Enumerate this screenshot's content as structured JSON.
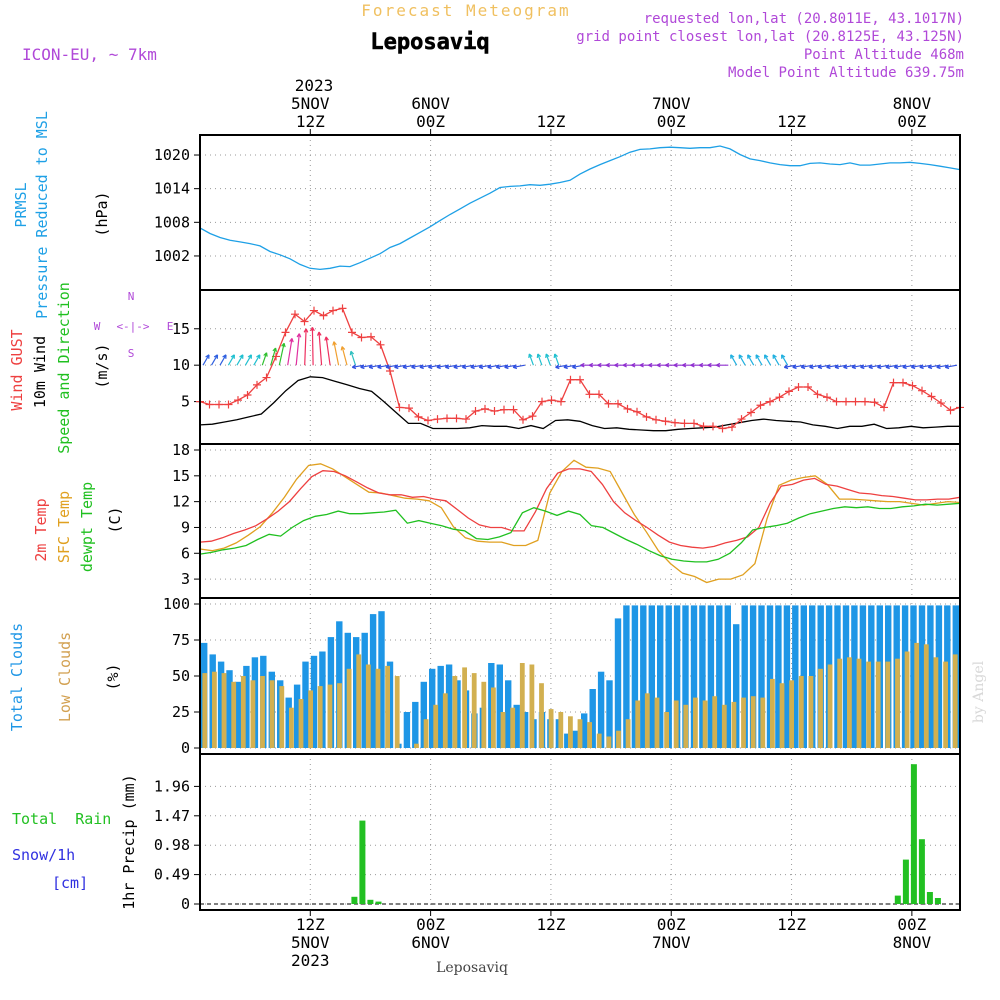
{
  "header": {
    "forecast_title": "Forecast Meteogram",
    "location": "Leposaviq",
    "model": "ICON-EU, ~ 7km",
    "requested": "requested lon,lat (20.8011E, 43.1017N)",
    "grid_point": "grid point closest lon,lat (20.8125E, 43.125N)",
    "point_altitude": "Point Altitude 468m",
    "model_altitude": "Model Point Altitude 639.75m",
    "footer_location": "Leposaviq",
    "watermark": "by Angel"
  },
  "colors": {
    "pressure": "#1ea0e6",
    "gust": "#ee4040",
    "wind10m": "#000000",
    "t2m": "#ee4040",
    "tsfc": "#e0a020",
    "dewpt": "#20c020",
    "total_cloud": "#1e96e6",
    "low_cloud": "#d2b050",
    "rain": "#22c022",
    "snow": "#3030e0",
    "label_purple": "#b048d8",
    "title_orange": "#f0c060"
  },
  "chart_data": [
    {
      "type": "line",
      "name": "pressure",
      "title_top": "2023",
      "axis_top_labels": [
        {
          "hour": 12,
          "lines": [
            "5NOV",
            "12Z"
          ]
        },
        {
          "hour": 24,
          "lines": [
            "6NOV",
            "00Z"
          ]
        },
        {
          "hour": 36,
          "lines": [
            "",
            "12Z"
          ]
        },
        {
          "hour": 48,
          "lines": [
            "7NOV",
            "00Z"
          ]
        },
        {
          "hour": 60,
          "lines": [
            "",
            "12Z"
          ]
        },
        {
          "hour": 72,
          "lines": [
            "8NOV",
            "00Z"
          ]
        }
      ],
      "ylabel_1": "PRMSL",
      "ylabel_2": "Pressure Reduced to MSL",
      "ylabel_units": "(hPa)",
      "y_ticks": [
        "1002",
        "1008",
        "1014",
        "1020"
      ],
      "ylim": [
        997,
        1022.5
      ],
      "x_unit": "hours since 5NOV 01Z",
      "xlim": [
        1,
        76.8
      ],
      "x": [
        1,
        2,
        3,
        4,
        5,
        6,
        7,
        8,
        9,
        10,
        11,
        12,
        13,
        14,
        15,
        16,
        17,
        18,
        19,
        20,
        21,
        22,
        23,
        24,
        25,
        26,
        27,
        28,
        29,
        30,
        31,
        32,
        33,
        34,
        35,
        36,
        37,
        38,
        39,
        40,
        41,
        42,
        43,
        44,
        45,
        46,
        47,
        48,
        49,
        50,
        51,
        52,
        53,
        54,
        55,
        56,
        57,
        58,
        59,
        60,
        61,
        62,
        63,
        64,
        65,
        66,
        67,
        68,
        69,
        70,
        71,
        72,
        73,
        74,
        75,
        76,
        77
      ],
      "values": [
        1007.0,
        1006.0,
        1005.3,
        1004.8,
        1004.5,
        1004.2,
        1003.8,
        1002.8,
        1002.2,
        1001.5,
        1000.5,
        999.8,
        999.6,
        999.8,
        1000.2,
        1000.1,
        1000.8,
        1001.6,
        1002.4,
        1003.5,
        1004.2,
        1005.2,
        1006.2,
        1007.2,
        1008.3,
        1009.4,
        1010.4,
        1011.4,
        1012.3,
        1013.2,
        1014.2,
        1014.4,
        1014.5,
        1014.7,
        1014.6,
        1014.8,
        1015.1,
        1015.5,
        1016.6,
        1017.5,
        1018.3,
        1019.0,
        1019.7,
        1020.5,
        1021.0,
        1021.1,
        1021.3,
        1021.4,
        1021.3,
        1021.2,
        1021.3,
        1021.3,
        1021.6,
        1021.1,
        1020.1,
        1019.3,
        1019.0,
        1018.6,
        1018.3,
        1018.1,
        1018.1,
        1018.5,
        1018.6,
        1018.4,
        1018.3,
        1018.6,
        1018.2,
        1018.2,
        1018.4,
        1018.6,
        1018.6,
        1018.7,
        1018.5,
        1018.3,
        1018.0,
        1017.7,
        1017.4
      ]
    },
    {
      "type": "line",
      "name": "wind",
      "ylabel_1": "Wind GUST",
      "ylabel_2": "10m Wind",
      "ylabel_3": "Speed and Direction",
      "ylabel_units": "(m/s)",
      "compass": {
        "n": "N",
        "s": "S",
        "w": "W",
        "e": "E",
        "arrows": "<-|->"
      },
      "y_ticks": [
        "5",
        "10",
        "15"
      ],
      "ylim": [
        0,
        19.5
      ],
      "series": [
        {
          "name": "Wind GUST",
          "values": [
            5.0,
            4.6,
            4.6,
            4.6,
            5.2,
            5.9,
            7.3,
            8.3,
            11.2,
            14.5,
            17.0,
            16.0,
            17.5,
            16.8,
            17.5,
            17.8,
            14.5,
            13.8,
            13.9,
            12.8,
            9.2,
            4.2,
            4.1,
            2.9,
            2.4,
            2.6,
            2.7,
            2.7,
            2.6,
            3.7,
            4.0,
            3.7,
            3.9,
            3.9,
            2.5,
            3.0,
            5.0,
            5.2,
            5.0,
            8.0,
            8.0,
            6.0,
            6.0,
            4.7,
            4.7,
            4.0,
            3.6,
            2.9,
            2.5,
            2.3,
            2.1,
            2.0,
            2.0,
            1.6,
            1.6,
            1.3,
            1.5,
            2.6,
            3.5,
            4.5,
            5.0,
            5.6,
            6.4,
            7.0,
            7.0,
            6.0,
            5.6,
            5.0,
            5.0,
            5.0,
            5.0,
            4.9,
            4.2,
            7.6,
            7.6,
            7.2,
            6.5,
            5.7,
            4.8,
            3.8,
            4.2
          ]
        },
        {
          "name": "10m Wind",
          "values": [
            1.8,
            1.9,
            2.2,
            2.5,
            2.9,
            3.3,
            4.8,
            6.5,
            7.9,
            8.4,
            8.3,
            7.8,
            7.3,
            6.8,
            6.4,
            5.0,
            3.5,
            2.0,
            2.0,
            1.3,
            1.3,
            1.3,
            1.4,
            1.7,
            1.6,
            1.6,
            1.3,
            1.7,
            1.3,
            2.4,
            2.5,
            2.3,
            1.7,
            1.3,
            1.4,
            1.2,
            1.1,
            1.0,
            1.0,
            1.2,
            1.3,
            1.4,
            1.5,
            1.8,
            2.1,
            2.4,
            2.6,
            2.4,
            2.3,
            2.2,
            1.8,
            1.6,
            1.3,
            1.6,
            1.6,
            1.9,
            1.3,
            1.4,
            1.6,
            1.4,
            1.5,
            1.6,
            1.6
          ]
        }
      ]
    },
    {
      "type": "line",
      "name": "temperature",
      "ylabel_1": "2m Temp",
      "ylabel_2": "SFC Temp",
      "ylabel_3": "dewpt Temp",
      "ylabel_units": "(C)",
      "y_ticks": [
        "3",
        "6",
        "9",
        "12",
        "15",
        "18"
      ],
      "ylim": [
        1.5,
        18
      ],
      "series": [
        {
          "name": "2m Temp",
          "values": [
            7.3,
            7.4,
            7.8,
            8.3,
            8.7,
            9.2,
            10.0,
            10.9,
            12.0,
            13.5,
            14.9,
            15.6,
            15.5,
            15.0,
            14.3,
            13.6,
            13.0,
            12.8,
            12.8,
            12.5,
            12.6,
            12.3,
            12.1,
            11.1,
            10.1,
            9.3,
            9.0,
            9.0,
            8.6,
            8.6,
            10.8,
            13.5,
            15.3,
            15.8,
            15.8,
            15.5,
            14.0,
            12.0,
            10.7,
            9.8,
            9.0,
            8.1,
            7.3,
            6.9,
            6.7,
            6.6,
            6.8,
            7.2,
            7.5,
            7.9,
            9.0,
            11.8,
            13.8,
            14.0,
            14.5,
            14.7,
            14.0,
            13.8,
            13.4,
            13.0,
            12.9,
            12.7,
            12.6,
            12.4,
            12.2,
            12.2,
            12.3,
            12.3,
            12.5
          ]
        },
        {
          "name": "SFC Temp",
          "values": [
            6.5,
            6.3,
            6.6,
            7.2,
            8.1,
            9.1,
            10.7,
            12.5,
            14.6,
            16.2,
            16.4,
            15.8,
            14.9,
            14.0,
            13.1,
            13.0,
            12.7,
            12.4,
            12.3,
            12.1,
            11.3,
            9.1,
            7.8,
            7.4,
            7.3,
            7.3,
            6.9,
            6.9,
            7.5,
            13.0,
            15.5,
            16.8,
            16.0,
            15.9,
            15.5,
            13.0,
            10.5,
            8.5,
            6.3,
            4.8,
            3.7,
            3.3,
            2.6,
            3.0,
            3.0,
            3.5,
            4.8,
            10.0,
            13.9,
            14.5,
            14.8,
            15.0,
            14.0,
            12.3,
            12.3,
            12.2,
            12.1,
            12.0,
            12.0,
            11.8,
            11.6,
            11.8,
            12.0,
            11.9
          ]
        },
        {
          "name": "dewpt Temp",
          "values": [
            5.9,
            6.1,
            6.4,
            6.6,
            6.9,
            7.6,
            8.2,
            8.0,
            9.0,
            9.8,
            10.3,
            10.5,
            10.9,
            10.6,
            10.6,
            10.7,
            10.8,
            11.0,
            9.5,
            9.8,
            9.5,
            9.2,
            8.8,
            8.6,
            7.7,
            7.6,
            7.9,
            8.4,
            10.7,
            11.3,
            10.9,
            10.4,
            10.9,
            10.5,
            9.2,
            9.0,
            8.3,
            7.6,
            7.0,
            6.3,
            5.7,
            5.3,
            5.1,
            5.0,
            5.0,
            5.3,
            6.0,
            7.2,
            8.7,
            9.0,
            9.2,
            9.5,
            10.1,
            10.6,
            10.9,
            11.2,
            11.4,
            11.3,
            11.4,
            11.2,
            11.2,
            11.4,
            11.5,
            11.7,
            11.6,
            11.7,
            11.8
          ]
        }
      ]
    },
    {
      "type": "bar",
      "name": "clouds",
      "ylabel_1": "Total Clouds",
      "ylabel_2": "Low Clouds",
      "ylabel_units": "(%)",
      "y_ticks": [
        "0",
        "25",
        "50",
        "75",
        "100"
      ],
      "ylim": [
        0,
        100
      ],
      "series": [
        {
          "name": "Total Clouds",
          "values": [
            73,
            65,
            60,
            54,
            46,
            57,
            63,
            64,
            53,
            47,
            35,
            44,
            60,
            64,
            67,
            77,
            88,
            80,
            77,
            80,
            93,
            95,
            60,
            3,
            25,
            32,
            46,
            55,
            57,
            58,
            47,
            40,
            24,
            28,
            59,
            58,
            47,
            30,
            25,
            20,
            25,
            20,
            20,
            10,
            12,
            24,
            41,
            53,
            47,
            90,
            99,
            99,
            99,
            99,
            99,
            99,
            99,
            99,
            99,
            99,
            99,
            99,
            99,
            86,
            99,
            99,
            99,
            99,
            99,
            99,
            99,
            99,
            99,
            99,
            99,
            99,
            99,
            99,
            99,
            99,
            99,
            99,
            99,
            99,
            99,
            99,
            99,
            99,
            99,
            99
          ]
        },
        {
          "name": "Low Clouds",
          "values": [
            52,
            53,
            52,
            46,
            50,
            47,
            50,
            47,
            43,
            28,
            34,
            40,
            43,
            44,
            45,
            55,
            65,
            58,
            55,
            57,
            50,
            0,
            3,
            20,
            30,
            38,
            50,
            56,
            52,
            46,
            42,
            25,
            28,
            59,
            58,
            45,
            27,
            25,
            22,
            20,
            18,
            10,
            8,
            12,
            20,
            33,
            38,
            35,
            25,
            33,
            30,
            35,
            33,
            36,
            30,
            32,
            35,
            36,
            35,
            48,
            45,
            47,
            50,
            50,
            55,
            58,
            62,
            63,
            62,
            60,
            60,
            60,
            62,
            67,
            73,
            72,
            63,
            60,
            65
          ]
        }
      ]
    },
    {
      "type": "bar",
      "name": "precip",
      "ylabel_1": "Total  Rain",
      "ylabel_2": "Snow/1h",
      "ylabel_3": "[cm]",
      "ylabel_units": "1hr Precip (mm)",
      "y_ticks": [
        "0",
        "0.49",
        "0.98",
        "1.47",
        "1.96"
      ],
      "ylim": [
        0,
        2.4
      ],
      "axis_bottom_labels": [
        {
          "hour": 12,
          "lines": [
            "12Z",
            "5NOV",
            "2023"
          ]
        },
        {
          "hour": 24,
          "lines": [
            "00Z",
            "6NOV",
            ""
          ]
        },
        {
          "hour": 36,
          "lines": [
            "12Z",
            "",
            ""
          ]
        },
        {
          "hour": 48,
          "lines": [
            "00Z",
            "7NOV",
            ""
          ]
        },
        {
          "hour": 60,
          "lines": [
            "12Z",
            "",
            ""
          ]
        },
        {
          "hour": 72,
          "lines": [
            "00Z",
            "8NOV",
            ""
          ]
        }
      ],
      "bars": [
        {
          "x": 16.4,
          "value": 0.12
        },
        {
          "x": 17.2,
          "value": 1.39
        },
        {
          "x": 18.0,
          "value": 0.07
        },
        {
          "x": 18.8,
          "value": 0.04
        },
        {
          "x": 70.6,
          "value": 0.14
        },
        {
          "x": 71.4,
          "value": 0.74
        },
        {
          "x": 72.2,
          "value": 2.33
        },
        {
          "x": 73.0,
          "value": 1.08
        },
        {
          "x": 73.8,
          "value": 0.2
        },
        {
          "x": 74.6,
          "value": 0.1
        }
      ]
    }
  ]
}
